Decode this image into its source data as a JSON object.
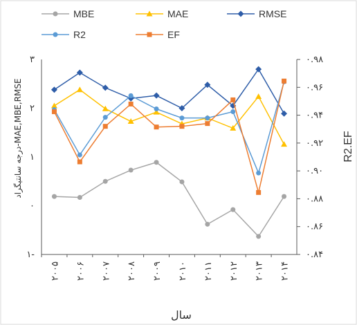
{
  "chart_data": {
    "type": "line",
    "categories": [
      "۲۰۰۵",
      "۲۰۰۶",
      "۲۰۰۷",
      "۲۰۰۸",
      "۲۰۰۹",
      "۲۰۱۰",
      "۲۰۱۱",
      "۲۰۱۲",
      "۲۰۱۳",
      "۲۰۱۴"
    ],
    "xlabel": "سال",
    "ylabel_left": "درجه سانتیگراد-MAE,MBE,RMSE",
    "ylabel_right": "R2.EF",
    "ylim_left": [
      -1,
      3
    ],
    "ylim_right": [
      0.84,
      0.98
    ],
    "yticks_left": [
      "۳",
      "۲",
      "۱",
      "۰",
      "۱-"
    ],
    "yticks_right": [
      "۰.۹۸",
      "۰.۹۶",
      "۰.۹۴",
      "۰.۹۲",
      "۰.۹۰",
      "۰.۸۸",
      "۰.۸۶",
      "۰.۸۴"
    ],
    "grid": false,
    "legend_position": "top",
    "series": [
      {
        "name": "MBE",
        "axis": "left",
        "color": "#a5a5a5",
        "marker": "circle",
        "values": [
          0.19,
          0.17,
          0.5,
          0.73,
          0.89,
          0.49,
          -0.38,
          -0.08,
          -0.63,
          0.19
        ]
      },
      {
        "name": "MAE",
        "axis": "left",
        "color": "#ffc000",
        "marker": "triangle",
        "values": [
          2.05,
          2.38,
          1.99,
          1.73,
          1.92,
          1.68,
          1.8,
          1.59,
          2.24,
          1.26
        ]
      },
      {
        "name": "RMSE",
        "axis": "left",
        "color": "#2e5da8",
        "marker": "diamond",
        "values": [
          2.38,
          2.73,
          2.42,
          2.2,
          2.26,
          2.0,
          2.48,
          2.05,
          2.8,
          1.89
        ]
      },
      {
        "name": "R2",
        "axis": "right",
        "color": "#5b9bd5",
        "marker": "circle",
        "values": [
          0.944,
          0.9115,
          0.9385,
          0.954,
          0.9445,
          0.938,
          0.938,
          0.9425,
          0.8985,
          0.964
        ]
      },
      {
        "name": "EF",
        "axis": "right",
        "color": "#ed7d31",
        "marker": "square",
        "values": [
          0.9425,
          0.9065,
          0.932,
          0.948,
          0.9315,
          0.932,
          0.934,
          0.951,
          0.8845,
          0.9645
        ]
      }
    ]
  }
}
